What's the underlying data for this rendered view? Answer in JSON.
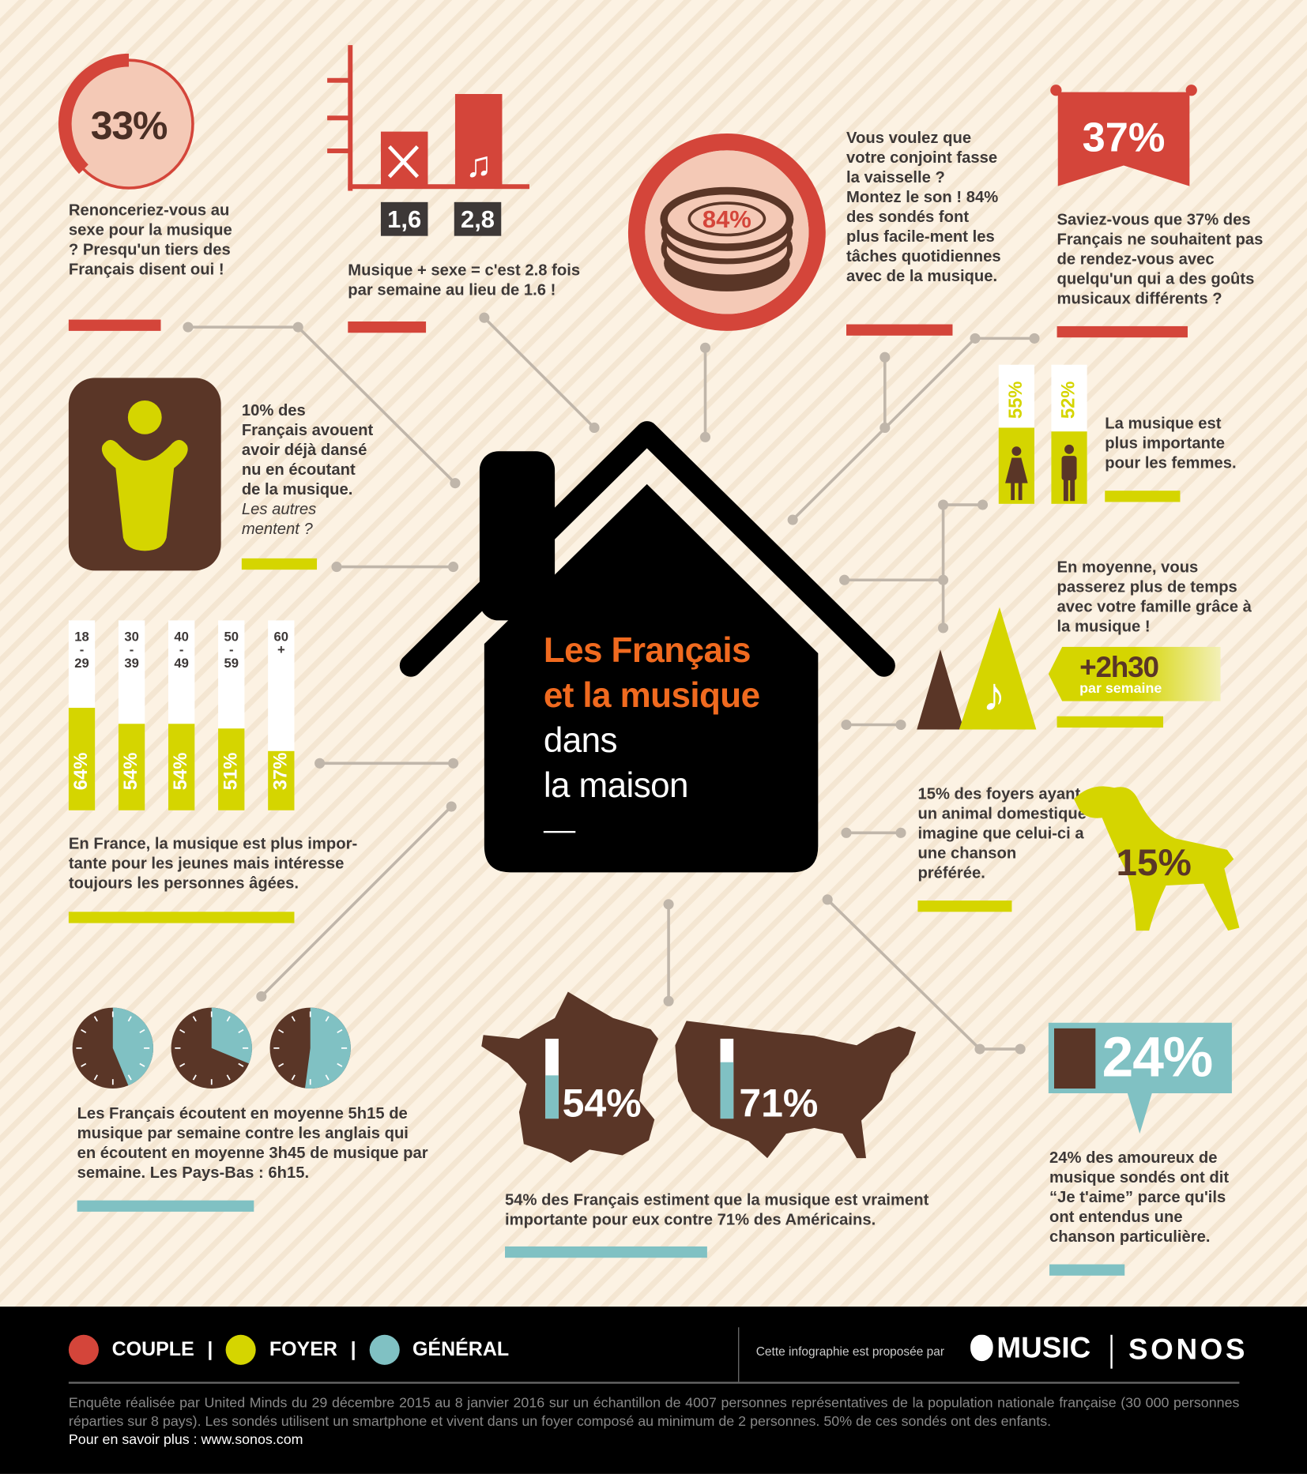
{
  "colors": {
    "couple": "#d4453a",
    "foyer": "#d5d500",
    "general": "#80c1c3",
    "brown": "#5a3627"
  },
  "title": {
    "line1": "Les Français",
    "line2": "et la musique",
    "line3": "dans",
    "line4": "la maison"
  },
  "sexe": {
    "pct": "33%",
    "text": "Renonceriez-vous au sexe pour la musique ? Presqu'un tiers des Français disent oui !"
  },
  "bars": {
    "without": "1,6",
    "with": "2,8",
    "text": "Musique + sexe = c'est 2.8 fois par semaine au lieu de 1.6 !",
    "icons": [
      "cross-icon",
      "music-note-icon"
    ]
  },
  "vaisselle": {
    "pct": "84%",
    "text": "Vous voulez que votre conjoint fasse la vaisselle ? Montez le son ! 84% des sondés font plus facile-ment les tâches quotidiennes avec de la musique."
  },
  "rdv": {
    "pct": "37%",
    "text": "Saviez-vous que 37% des Français ne souhaitent pas de rendez-vous avec quelqu'un qui a des goûts musicaux différents ?"
  },
  "danse": {
    "text_main": "10% des Français avouent avoir déjà dansé nu en écoutant de la musique.",
    "text_italic": "Les autres mentent ?"
  },
  "ages": {
    "groups": [
      {
        "label": "18\n-\n29",
        "value": 64,
        "pct": "64%"
      },
      {
        "label": "30\n-\n39",
        "value": 54,
        "pct": "54%"
      },
      {
        "label": "40\n-\n49",
        "value": 54,
        "pct": "54%"
      },
      {
        "label": "50\n-\n59",
        "value": 51,
        "pct": "51%"
      },
      {
        "label": "60\n+",
        "value": 37,
        "pct": "37%"
      }
    ],
    "text": "En France, la musique est plus impor-tante pour les jeunes mais intéresse toujours les personnes âgées."
  },
  "genre": {
    "femmes": "55%",
    "hommes": "52%",
    "femmes_value": 55,
    "hommes_value": 52,
    "text": "La musique est plus importante pour les femmes."
  },
  "famille": {
    "text": "En moyenne,  vous passerez plus de temps avec votre famille grâce à la musique !",
    "value": "+2h30",
    "unit": "par semaine"
  },
  "animal": {
    "pct": "15%",
    "text": "15% des foyers ayant un animal domestique imagine que celui-ci a une chanson préférée."
  },
  "ecoute": {
    "text": "Les Français écoutent en moyenne 5h15 de musique par semaine contre les anglais qui en écoutent en moyenne 3h45 de musique par semaine. Les Pays-Bas : 6h15.",
    "clocks_hours": [
      5.25,
      3.75,
      6.25
    ]
  },
  "pays": {
    "france": "54%",
    "usa": "71%",
    "france_value": 54,
    "usa_value": 71,
    "text": "54% des Français estiment que la musique est vraiment importante pour eux contre 71% des Américains."
  },
  "amour": {
    "pct": "24%",
    "text": "24% des amoureux de musique sondés ont dit “Je t'aime” parce qu'ils ont entendus une chanson particulière."
  },
  "footer": {
    "legend": [
      "COUPLE",
      "FOYER",
      "GÉNÉRAL"
    ],
    "sep": "|",
    "credit": "Cette infographie est proposée par",
    "music": "MUSIC",
    "sonos": "SONOS",
    "survey": "Enquête réalisée par United Minds du 29 décembre 2015 au 8 janvier 2016 sur un échantillon de 4007 personnes représentatives de la population nationale française (30 000 personnes réparties sur 8 pays). Les sondés utilisent un smartphone et vivent dans un foyer composé au minimum de 2 personnes. 50% de ces sondés ont des enfants.",
    "more": "Pour en savoir plus : www.sonos.com"
  }
}
